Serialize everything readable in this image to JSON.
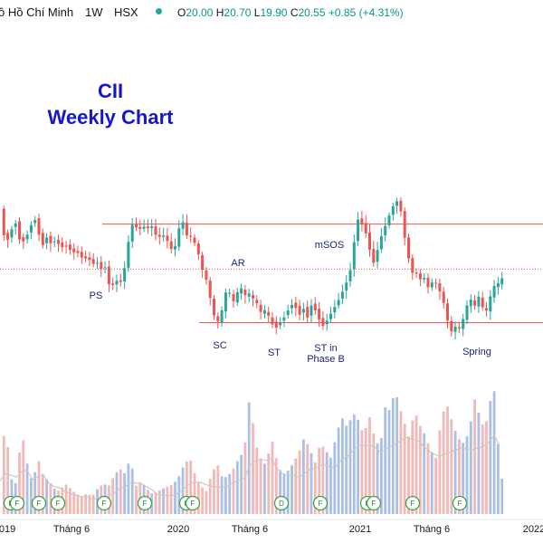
{
  "header": {
    "symbol": "ồ Hồ Chí Minh",
    "interval": "1W",
    "exchange": "HSX",
    "o_label": "O",
    "o_value": "20.00",
    "h_label": "H",
    "h_value": "20.70",
    "l_label": "L",
    "l_value": "19.90",
    "c_label": "C",
    "c_value": "20.55",
    "change": "+0.85 (+4.31%)",
    "status_color": "#26a69a"
  },
  "chart_data": {
    "type": "candlestick",
    "title_line1": "CII",
    "title_line2": "Weekly Chart",
    "up_color": "#26a69a",
    "down_color": "#ef5350",
    "x_tick_labels": [
      "019",
      "Tháng 6",
      "2020",
      "Tháng 6",
      "2021",
      "Tháng 6",
      "2022"
    ],
    "annotations": [
      {
        "label": "PS"
      },
      {
        "label": "SC"
      },
      {
        "label": "AR"
      },
      {
        "label": "ST"
      },
      {
        "label": "ST in",
        "label2": "Phase B"
      },
      {
        "label": "mSOS"
      },
      {
        "label": "Spring"
      }
    ],
    "event_badges": [
      "F",
      "F",
      "F",
      "F",
      "F",
      "F",
      "F",
      "F",
      "D",
      "F",
      "F",
      "F",
      "F",
      "F"
    ],
    "close_path": [
      [
        0,
        "24.6"
      ],
      [
        4,
        "23.5"
      ],
      [
        8,
        "23.2"
      ],
      [
        12,
        "23.6"
      ],
      [
        16,
        "24.3"
      ],
      [
        20,
        "23.4"
      ],
      [
        24,
        "23.1"
      ],
      [
        28,
        "23.3"
      ],
      [
        31,
        "23.6"
      ],
      [
        34,
        "23.9"
      ],
      [
        37,
        "24.3"
      ],
      [
        40,
        "24.1"
      ],
      [
        43,
        "23.5"
      ],
      [
        47,
        "23.0"
      ],
      [
        52,
        "23.4"
      ],
      [
        56,
        "23.1"
      ],
      [
        60,
        "23.2"
      ],
      [
        64,
        "23.1"
      ],
      [
        68,
        "22.9"
      ],
      [
        72,
        "23.0"
      ],
      [
        76,
        "22.9"
      ],
      [
        80,
        "22.6"
      ],
      [
        84,
        "22.8"
      ],
      [
        88,
        "22.5"
      ],
      [
        92,
        "22.4"
      ],
      [
        96,
        "22.4"
      ],
      [
        100,
        "22.3"
      ],
      [
        104,
        "22.1"
      ],
      [
        108,
        "22.2"
      ],
      [
        112,
        "21.9"
      ],
      [
        116,
        "22.0"
      ],
      [
        120,
        "21.2"
      ],
      [
        124,
        "21.1"
      ],
      [
        128,
        "21.4"
      ],
      [
        132,
        "21.2"
      ],
      [
        136,
        "21.5"
      ],
      [
        140,
        "22.6"
      ],
      [
        144,
        "23.8"
      ],
      [
        148,
        "24.1"
      ],
      [
        152,
        "23.7"
      ],
      [
        156,
        "23.8"
      ],
      [
        160,
        "23.9"
      ],
      [
        164,
        "23.8"
      ],
      [
        168,
        "23.9"
      ],
      [
        172,
        "23.5"
      ],
      [
        176,
        "23.4"
      ],
      [
        180,
        "23.5"
      ],
      [
        184,
        "23.3"
      ],
      [
        188,
        "22.9"
      ],
      [
        192,
        "22.7"
      ],
      [
        196,
        "23.4"
      ],
      [
        200,
        "24.3"
      ],
      [
        204,
        "23.9"
      ],
      [
        208,
        "23.2"
      ],
      [
        212,
        "23.5"
      ],
      [
        216,
        "23.0"
      ],
      [
        220,
        "22.5"
      ],
      [
        224,
        "21.8"
      ],
      [
        228,
        "21.4"
      ],
      [
        232,
        "20.6"
      ],
      [
        236,
        "19.8"
      ],
      [
        240,
        "19.4"
      ],
      [
        244,
        "19.7"
      ],
      [
        248,
        "20.7"
      ],
      [
        252,
        "21.0"
      ],
      [
        256,
        "20.5"
      ],
      [
        260,
        "20.3"
      ],
      [
        264,
        "21.2"
      ],
      [
        268,
        "20.9"
      ],
      [
        272,
        "20.6"
      ],
      [
        276,
        "20.8"
      ],
      [
        280,
        "20.5"
      ],
      [
        284,
        "20.3"
      ],
      [
        288,
        "19.9"
      ],
      [
        292,
        "20.0"
      ],
      [
        296,
        "19.8"
      ],
      [
        300,
        "19.4"
      ],
      [
        304,
        "19.1"
      ],
      [
        308,
        "19.3"
      ],
      [
        312,
        "19.5"
      ],
      [
        316,
        "19.8"
      ],
      [
        320,
        "20.1"
      ],
      [
        324,
        "20.3"
      ],
      [
        328,
        "20.0"
      ],
      [
        332,
        "19.7"
      ],
      [
        336,
        "20.1"
      ],
      [
        340,
        "19.6"
      ],
      [
        344,
        "20.2"
      ],
      [
        348,
        "20.0"
      ],
      [
        352,
        "19.6"
      ],
      [
        356,
        "19.2"
      ],
      [
        360,
        "19.4"
      ],
      [
        364,
        "19.7"
      ],
      [
        368,
        "20.0"
      ],
      [
        372,
        "20.3"
      ],
      [
        376,
        "20.6"
      ],
      [
        380,
        "21.0"
      ],
      [
        384,
        "21.4"
      ],
      [
        388,
        "22.0"
      ],
      [
        392,
        "23.4"
      ],
      [
        396,
        "24.3"
      ],
      [
        400,
        "24.0"
      ],
      [
        404,
        "23.6"
      ],
      [
        408,
        "22.9"
      ],
      [
        412,
        "22.1"
      ],
      [
        416,
        "22.6"
      ],
      [
        420,
        "23.3"
      ],
      [
        424,
        "23.7"
      ],
      [
        428,
        "24.2"
      ],
      [
        432,
        "24.6"
      ],
      [
        436,
        "25.0"
      ],
      [
        440,
        "25.1"
      ],
      [
        444,
        "24.4"
      ],
      [
        448,
        "23.1"
      ],
      [
        452,
        "22.3"
      ],
      [
        456,
        "21.7"
      ],
      [
        460,
        "21.7"
      ],
      [
        464,
        "21.4"
      ],
      [
        468,
        "21.6"
      ],
      [
        472,
        "21.0"
      ],
      [
        476,
        "21.2"
      ],
      [
        480,
        "21.4"
      ],
      [
        484,
        "21.0"
      ],
      [
        488,
        "20.7"
      ],
      [
        492,
        "20.0"
      ],
      [
        496,
        "19.2"
      ],
      [
        500,
        "18.9"
      ],
      [
        504,
        "19.3"
      ],
      [
        508,
        "19.1"
      ],
      [
        512,
        "19.6"
      ],
      [
        516,
        "20.2"
      ],
      [
        520,
        "20.5"
      ],
      [
        524,
        "20.1"
      ],
      [
        528,
        "20.7"
      ],
      [
        532,
        "20.3"
      ],
      [
        536,
        "19.7"
      ],
      [
        540,
        "20.4"
      ],
      [
        544,
        "20.9"
      ],
      [
        548,
        "21.3"
      ],
      [
        552,
        "21.2"
      ],
      [
        556,
        "21.6"
      ]
    ],
    "volume_path": [
      [
        0,
        "0.35"
      ],
      [
        6,
        "0.72"
      ],
      [
        12,
        "0.28"
      ],
      [
        18,
        "0.24"
      ],
      [
        24,
        "0.66"
      ],
      [
        30,
        "0.40"
      ],
      [
        36,
        "0.24"
      ],
      [
        42,
        "0.44"
      ],
      [
        48,
        "0.30"
      ],
      [
        54,
        "0.26"
      ],
      [
        60,
        "0.20"
      ],
      [
        66,
        "0.18"
      ],
      [
        72,
        "0.24"
      ],
      [
        78,
        "0.20"
      ],
      [
        84,
        "0.16"
      ],
      [
        90,
        "0.14"
      ],
      [
        96,
        "0.16"
      ],
      [
        102,
        "0.14"
      ],
      [
        108,
        "0.20"
      ],
      [
        114,
        "0.24"
      ],
      [
        120,
        "0.22"
      ],
      [
        126,
        "0.30"
      ],
      [
        132,
        "0.36"
      ],
      [
        138,
        "0.32"
      ],
      [
        144,
        "0.44"
      ],
      [
        150,
        "0.22"
      ],
      [
        156,
        "0.26"
      ],
      [
        162,
        "0.20"
      ],
      [
        168,
        "0.16"
      ],
      [
        174,
        "0.18"
      ],
      [
        180,
        "0.20"
      ],
      [
        186,
        "0.22"
      ],
      [
        192,
        "0.24"
      ],
      [
        198,
        "0.30"
      ],
      [
        204,
        "0.40"
      ],
      [
        210,
        "0.44"
      ],
      [
        216,
        "0.30"
      ],
      [
        222,
        "0.22"
      ],
      [
        228,
        "0.18"
      ],
      [
        234,
        "0.32"
      ],
      [
        240,
        "0.40"
      ],
      [
        246,
        "0.28"
      ],
      [
        252,
        "0.30"
      ],
      [
        258,
        "0.36"
      ],
      [
        264,
        "0.44"
      ],
      [
        270,
        "0.50"
      ],
      [
        276,
        "0.94"
      ],
      [
        282,
        "0.56"
      ],
      [
        288,
        "0.44"
      ],
      [
        294,
        "0.38"
      ],
      [
        300,
        "0.60"
      ],
      [
        306,
        "0.42"
      ],
      [
        312,
        "0.30"
      ],
      [
        318,
        "0.34"
      ],
      [
        324,
        "0.40"
      ],
      [
        330,
        "0.48"
      ],
      [
        336,
        "0.60"
      ],
      [
        342,
        "0.52"
      ],
      [
        348,
        "0.40"
      ],
      [
        354,
        "0.56"
      ],
      [
        360,
        "0.50"
      ],
      [
        366,
        "0.44"
      ],
      [
        372,
        "0.64"
      ],
      [
        378,
        "0.76"
      ],
      [
        384,
        "0.68"
      ],
      [
        390,
        "0.80"
      ],
      [
        396,
        "0.74"
      ],
      [
        402,
        "0.62"
      ],
      [
        408,
        "0.78"
      ],
      [
        414,
        "0.60"
      ],
      [
        420,
        "0.52"
      ],
      [
        426,
        "0.86"
      ],
      [
        432,
        "0.80"
      ],
      [
        436,
        "1.00"
      ],
      [
        440,
        "0.88"
      ],
      [
        446,
        "0.74"
      ],
      [
        452,
        "0.60"
      ],
      [
        458,
        "0.82"
      ],
      [
        464,
        "0.70"
      ],
      [
        470,
        "0.62"
      ],
      [
        476,
        "0.50"
      ],
      [
        482,
        "0.44"
      ],
      [
        488,
        "0.78"
      ],
      [
        494,
        "0.86"
      ],
      [
        500,
        "0.72"
      ],
      [
        506,
        "0.60"
      ],
      [
        512,
        "0.56"
      ],
      [
        518,
        "0.64"
      ],
      [
        522,
        "0.80"
      ],
      [
        526,
        "0.96"
      ],
      [
        530,
        "0.74"
      ],
      [
        536,
        "0.68"
      ],
      [
        540,
        "0.82"
      ],
      [
        544,
        "0.98"
      ],
      [
        548,
        "0.96"
      ],
      [
        552,
        "0.28"
      ]
    ],
    "reference_lines": [
      {
        "kind": "resistance-solid",
        "value": "24.0"
      },
      {
        "kind": "resistance-dotted",
        "value": "21.9"
      },
      {
        "kind": "support-solid",
        "value": "19.4"
      }
    ],
    "grid": false,
    "legend": "none"
  }
}
